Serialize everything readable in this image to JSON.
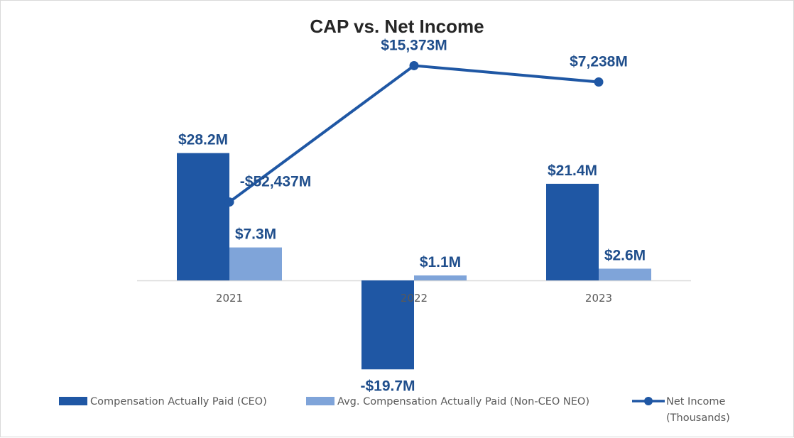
{
  "chart_data": {
    "type": "bar",
    "title": "CAP vs. Net Income",
    "categories": [
      "2021",
      "2022",
      "2023"
    ],
    "series": [
      {
        "name": "Compensation Actually Paid (CEO)",
        "kind": "bar",
        "color": "#1f57a4",
        "values": [
          28.2,
          -19.7,
          21.4
        ],
        "labels": [
          "$28.2M",
          "-$19.7M",
          "$21.4M"
        ]
      },
      {
        "name": "Avg. Compensation Actually Paid (Non-CEO NEO)",
        "kind": "bar",
        "color": "#7fa4d9",
        "values": [
          7.3,
          1.1,
          2.6
        ],
        "labels": [
          "$7.3M",
          "$1.1M",
          "$2.6M"
        ]
      },
      {
        "name": "Net Income (Thousands)",
        "name_lines": [
          "Net Income",
          "(Thousands)"
        ],
        "kind": "line",
        "color": "#1f57a4",
        "values": [
          -52437,
          15373,
          7238
        ],
        "labels": [
          "-$52,437M",
          "$15,373M",
          "$7,238M"
        ]
      }
    ],
    "bar_axis_range": [
      -24,
      32
    ],
    "line_axis_range": [
      -150000,
      30000
    ],
    "grid": false,
    "legend_position": "bottom",
    "label_color": "#1f4e8c"
  }
}
